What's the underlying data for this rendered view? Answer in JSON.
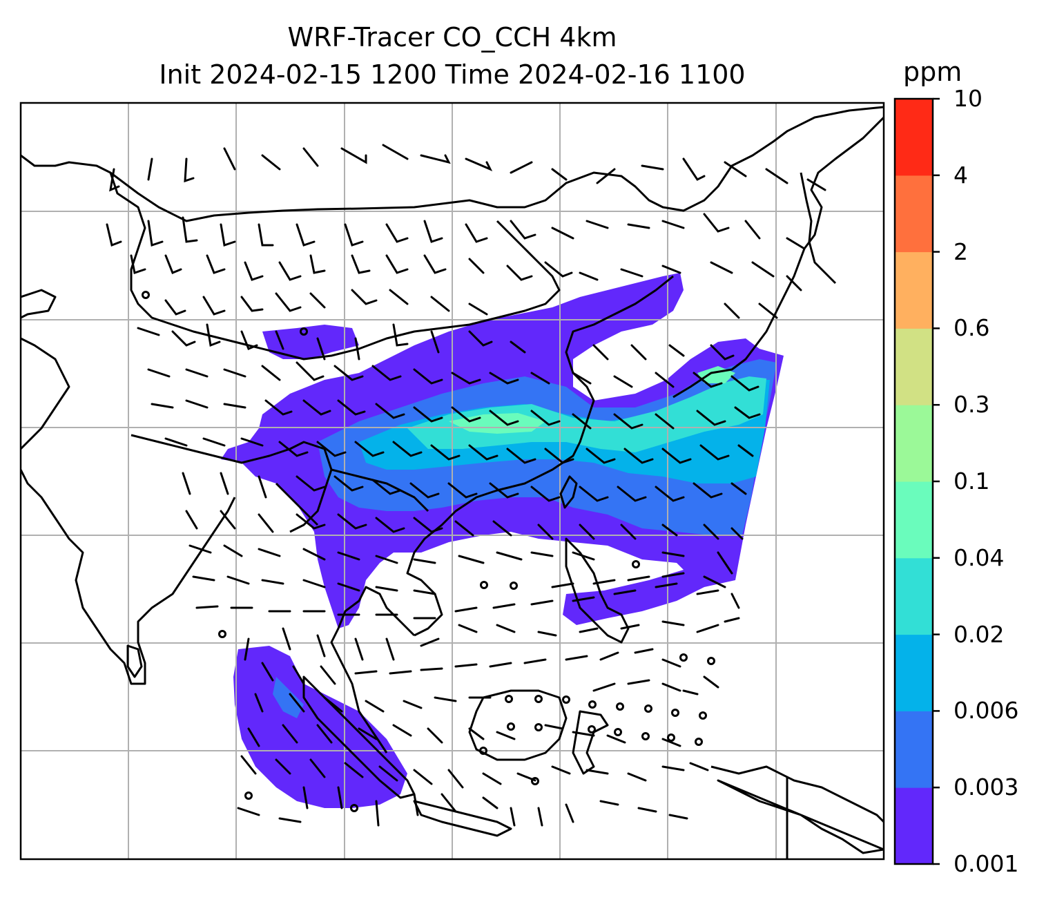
{
  "title": {
    "line1": "WRF-Tracer CO_CCH 4km",
    "line2": "Init 2024-02-15 1200 Time 2024-02-16 1100"
  },
  "colorbar": {
    "unit": "ppm",
    "ticks": [
      "10",
      "4",
      "2",
      "0.6",
      "0.3",
      "0.1",
      "0.04",
      "0.02",
      "0.006",
      "0.003",
      "0.001"
    ],
    "colors": [
      "#6228FB",
      "#3474F4",
      "#04B2EA",
      "#32DFD6",
      "#6AFCBC",
      "#9BF998",
      "#D1E184",
      "#FFB05F",
      "#FF703D",
      "#FF2A16"
    ]
  },
  "map": {
    "field": "CO_CCH tracer concentration",
    "overlays": [
      "coastlines",
      "country-borders",
      "lat-lon-gridlines",
      "wind-barbs"
    ]
  }
}
